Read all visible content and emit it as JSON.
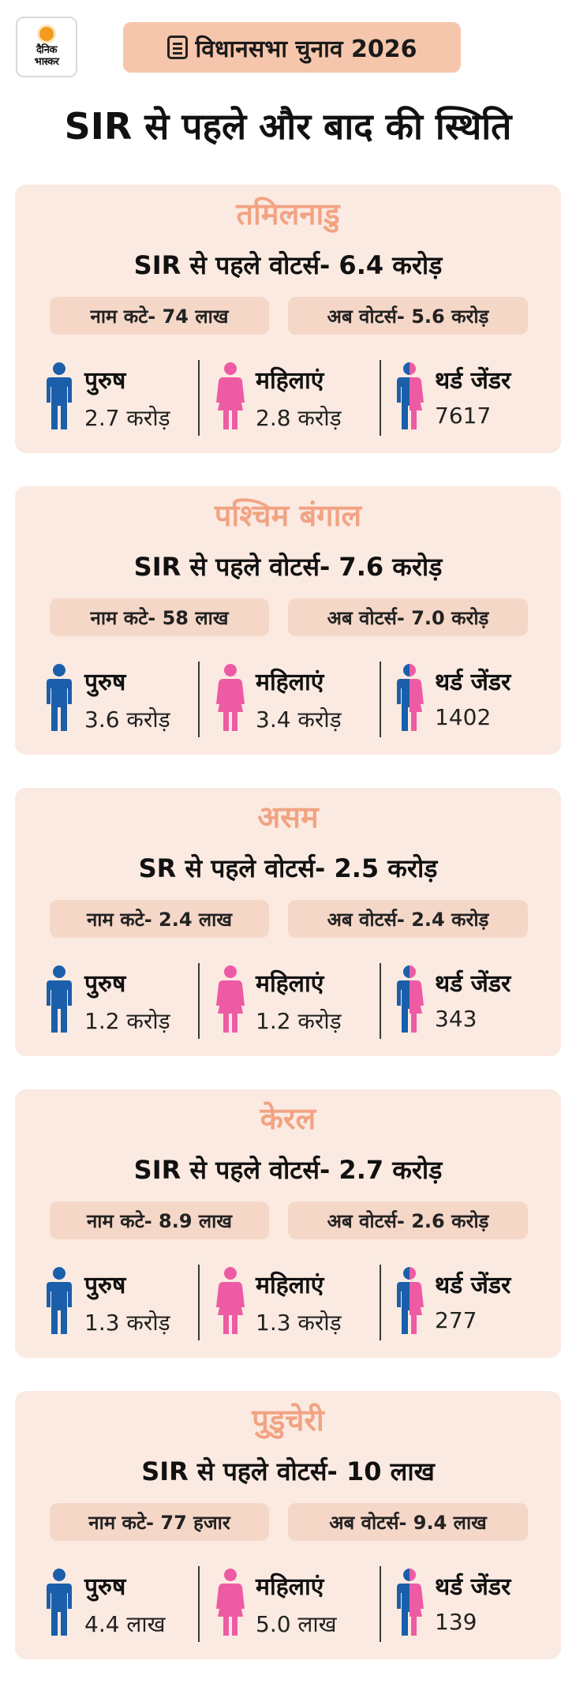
{
  "brand": {
    "logo_line1": "दैनिक",
    "logo_line2": "भास्कर"
  },
  "badge": {
    "text": "विधानसभा चुनाव 2026",
    "icon": "document-list-icon"
  },
  "title": "SIR से पहले और बाद की स्थिति",
  "colors": {
    "card_bg": "#fbeae1",
    "pill_bg": "#f5d7c8",
    "state_name": "#f2a383",
    "male": "#1b5fab",
    "female": "#ee5ba5",
    "badge_bg": "#f6c6ac"
  },
  "labels": {
    "male": "पुरुष",
    "female": "महिलाएं",
    "third": "थर्ड जेंडर"
  },
  "states": [
    {
      "name": "तमिलनाडु",
      "voters_before": "SIR से पहले वोटर्स- 6.4 करोड़",
      "removed": "नाम कटे- 74 लाख",
      "now": "अब वोटर्स- 5.6 करोड़",
      "male": "2.7 करोड़",
      "female": "2.8 करोड़",
      "third": "7617"
    },
    {
      "name": "पश्चिम बंगाल",
      "voters_before": "SIR से पहले वोटर्स- 7.6 करोड़",
      "removed": "नाम कटे- 58 लाख",
      "now": "अब वोटर्स- 7.0 करोड़",
      "male": "3.6 करोड़",
      "female": "3.4 करोड़",
      "third": "1402"
    },
    {
      "name": "असम",
      "voters_before": "SR से पहले वोटर्स- 2.5 करोड़",
      "removed": "नाम कटे- 2.4 लाख",
      "now": "अब वोटर्स- 2.4 करोड़",
      "male": "1.2 करोड़",
      "female": "1.2 करोड़",
      "third": "343"
    },
    {
      "name": "केरल",
      "voters_before": "SIR से पहले वोटर्स- 2.7 करोड़",
      "removed": "नाम कटे- 8.9 लाख",
      "now": "अब वोटर्स-  2.6 करोड़",
      "male": "1.3 करोड़",
      "female": "1.3 करोड़",
      "third": "277"
    },
    {
      "name": "पुडुचेरी",
      "voters_before": "SIR से पहले वोटर्स- 10 लाख",
      "removed": "नाम कटे- 77 हजार",
      "now": "अब वोटर्स- 9.4 लाख",
      "male": "4.4 लाख",
      "female": "5.0 लाख",
      "third": "139"
    }
  ]
}
